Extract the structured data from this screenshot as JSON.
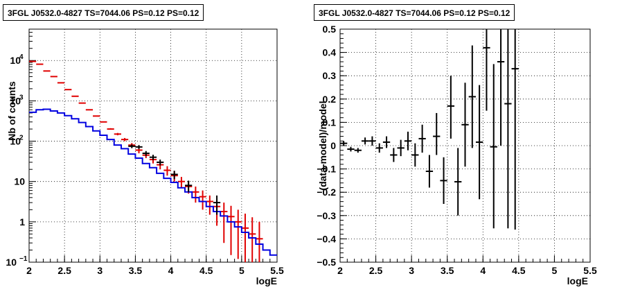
{
  "left_panel": {
    "title": "3FGL J0532.0-4827 TS=7044.06 PS=0.12 PS=0.12",
    "ylabel": "Nb of counts",
    "xlabel": "logE"
  },
  "right_panel": {
    "title": "3FGL J0532.0-4827 TS=7044.06 PS=0.12 PS=0.12",
    "ylabel": "(data-model)/model",
    "xlabel": "logE"
  },
  "colors": {
    "data_black": "#000000",
    "model_red": "#e00000",
    "model_blue": "#0000e0",
    "grid": "#000000"
  },
  "chart_data": [
    {
      "type": "line",
      "ylog": true,
      "xlim": [
        2,
        5.5
      ],
      "ylim": [
        0.1,
        60000
      ],
      "grid": true,
      "xticks": [
        "2",
        "2.5",
        "3",
        "3.5",
        "4",
        "4.5",
        "5",
        "5.5"
      ],
      "yticks": [
        {
          "value": 0.1,
          "label": "10",
          "sup": "−1"
        },
        {
          "value": 1,
          "label": "1",
          "sup": ""
        },
        {
          "value": 10,
          "label": "10",
          "sup": ""
        },
        {
          "value": 100,
          "label": "10",
          "sup": "2"
        },
        {
          "value": 1000,
          "label": "10",
          "sup": "3"
        },
        {
          "value": 10000,
          "label": "10",
          "sup": "4"
        }
      ],
      "series": [
        {
          "kind": "errorbars",
          "color": "#e00000",
          "bin_width": 0.1,
          "x": [
            2.05,
            2.15,
            2.25,
            2.35,
            2.45,
            2.55,
            2.65,
            2.75,
            2.85,
            2.95,
            3.05,
            3.15,
            3.25,
            3.35,
            3.45,
            3.55,
            3.65,
            3.75,
            3.85,
            3.95,
            4.05,
            4.15,
            4.25,
            4.35,
            4.45,
            4.55,
            4.65,
            4.75,
            4.85,
            4.95,
            5.05,
            5.15,
            5.25
          ],
          "y": [
            9500,
            8100,
            5500,
            4000,
            2800,
            1900,
            1300,
            880,
            600,
            420,
            300,
            200,
            150,
            110,
            80,
            60,
            45,
            35,
            26,
            19,
            14,
            10,
            7.5,
            5.5,
            4.2,
            3.2,
            2.4,
            1.8,
            1.35,
            1.0,
            0.7,
            0.5,
            0.38
          ],
          "ylow": [
            9500,
            8100,
            5500,
            4000,
            2800,
            1900,
            1300,
            880,
            600,
            420,
            300,
            200,
            140,
            100,
            70,
            50,
            38,
            28,
            20,
            14,
            10,
            7,
            5,
            3,
            2,
            1.5,
            0.8,
            0.3,
            0.15,
            0.12,
            0.1,
            0.1,
            0.1
          ],
          "yhigh": [
            9500,
            8100,
            5500,
            4000,
            2800,
            1900,
            1300,
            880,
            600,
            420,
            300,
            210,
            160,
            120,
            90,
            68,
            52,
            40,
            30,
            24,
            18,
            13,
            10,
            7.5,
            6,
            4.5,
            3.5,
            3.0,
            2.5,
            2.0,
            1.6,
            1.3,
            1.0
          ]
        },
        {
          "kind": "step",
          "color": "#0000e0",
          "bin_width": 0.1,
          "x": [
            2.05,
            2.15,
            2.25,
            2.35,
            2.45,
            2.55,
            2.65,
            2.75,
            2.85,
            2.95,
            3.05,
            3.15,
            3.25,
            3.35,
            3.45,
            3.55,
            3.65,
            3.75,
            3.85,
            3.95,
            4.05,
            4.15,
            4.25,
            4.35,
            4.45,
            4.55,
            4.65,
            4.75,
            4.85,
            4.95,
            5.05,
            5.15,
            5.25,
            5.35,
            5.45
          ],
          "y": [
            520,
            600,
            620,
            560,
            500,
            430,
            360,
            290,
            230,
            180,
            140,
            110,
            80,
            65,
            48,
            38,
            28,
            22,
            16,
            12,
            9.5,
            7,
            5.5,
            4,
            3.2,
            2.4,
            1.8,
            1.4,
            1.0,
            0.75,
            0.55,
            0.4,
            0.28,
            0.2,
            0.15
          ]
        },
        {
          "kind": "errorbars",
          "color": "#000000",
          "bin_width": 0.1,
          "x": [
            3.45,
            3.55,
            3.65,
            3.75,
            3.85,
            4.05,
            4.25,
            4.65
          ],
          "y": [
            75,
            72,
            50,
            40,
            30,
            15,
            8,
            3
          ],
          "ylow": [
            67,
            64,
            43,
            34,
            25,
            11.5,
            5.5,
            1.5
          ],
          "yhigh": [
            83,
            80,
            57,
            46,
            35,
            18.5,
            10.5,
            4.5
          ]
        }
      ]
    },
    {
      "type": "scatter",
      "xlim": [
        2,
        5.5
      ],
      "ylim": [
        -0.5,
        0.5
      ],
      "grid": true,
      "xticks": [
        "2",
        "2.5",
        "3",
        "3.5",
        "4",
        "4.5",
        "5",
        "5.5"
      ],
      "yticks": [
        "−0.5",
        "−0.4",
        "−0.3",
        "−0.2",
        "−0.1",
        "0",
        "0.1",
        "0.2",
        "0.3",
        "0.4",
        "0.5"
      ],
      "series": [
        {
          "kind": "errorbars",
          "color": "#000000",
          "bin_width": 0.1,
          "x": [
            2.05,
            2.15,
            2.25,
            2.35,
            2.45,
            2.55,
            2.65,
            2.75,
            2.85,
            2.95,
            3.05,
            3.15,
            3.25,
            3.35,
            3.45,
            3.55,
            3.65,
            3.75,
            3.85,
            3.95,
            4.05,
            4.15,
            4.25,
            4.35,
            4.45
          ],
          "y": [
            0.01,
            -0.015,
            -0.02,
            0.02,
            0.02,
            -0.01,
            0.015,
            -0.04,
            -0.01,
            0.02,
            -0.04,
            0.03,
            -0.11,
            0.04,
            -0.15,
            0.17,
            -0.155,
            0.09,
            0.21,
            0.015,
            0.42,
            -0.005,
            0.36,
            0.18,
            0.33
          ],
          "ylow": [
            0.0,
            -0.025,
            -0.03,
            0.005,
            0.0,
            -0.03,
            -0.01,
            -0.07,
            -0.045,
            -0.02,
            -0.09,
            -0.03,
            -0.18,
            -0.04,
            -0.25,
            0.03,
            -0.3,
            -0.09,
            -0.01,
            -0.23,
            0.15,
            -0.355,
            0.0,
            -0.355,
            -0.36
          ],
          "yhigh": [
            0.02,
            -0.005,
            -0.01,
            0.035,
            0.04,
            0.01,
            0.04,
            -0.01,
            0.025,
            0.06,
            0.01,
            0.09,
            -0.04,
            0.14,
            -0.05,
            0.3,
            -0.01,
            0.27,
            0.43,
            0.26,
            0.5,
            0.35,
            0.5,
            0.5,
            0.5
          ]
        }
      ]
    }
  ]
}
